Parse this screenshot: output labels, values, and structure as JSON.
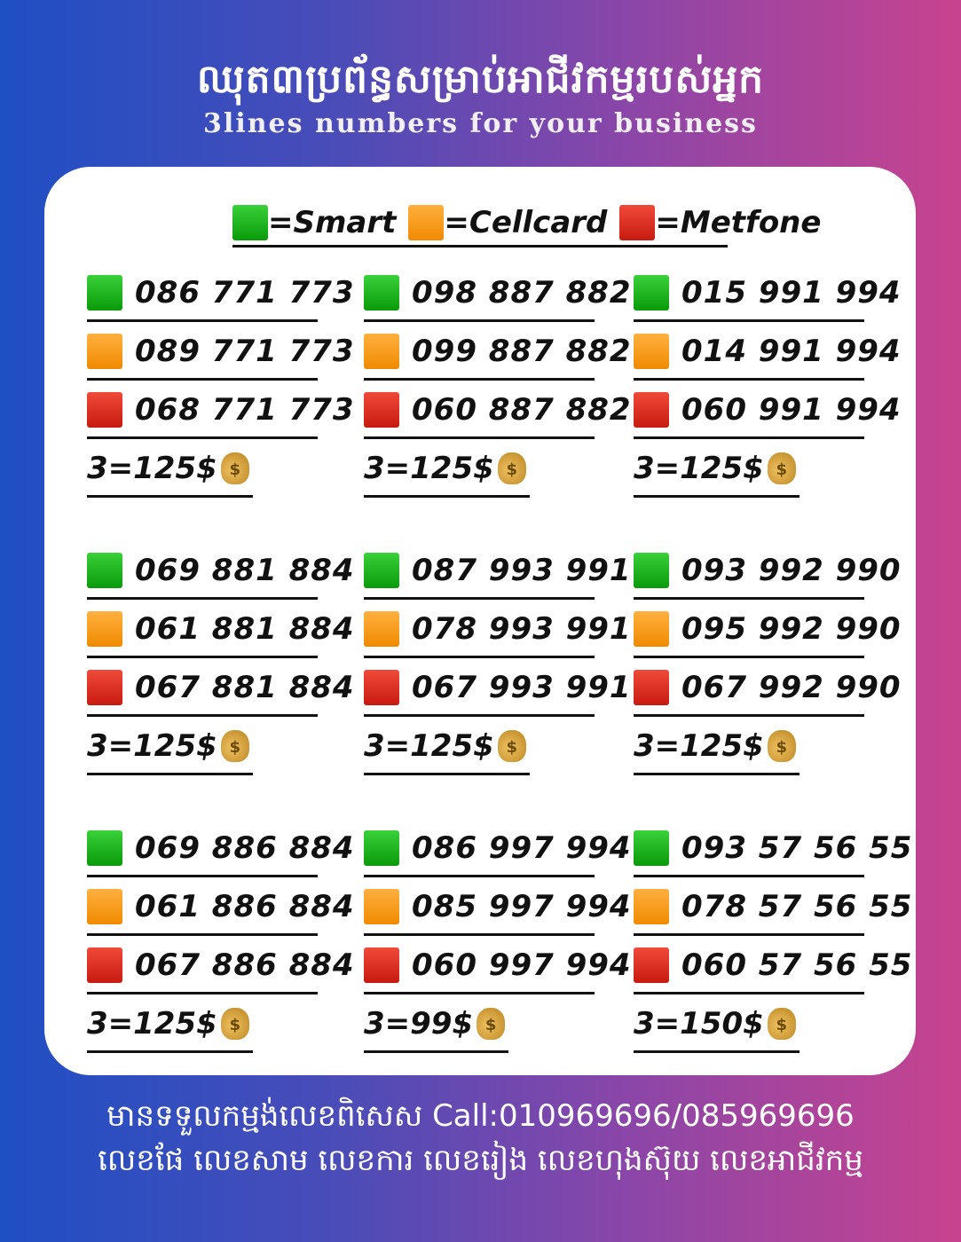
{
  "header": {
    "title": "ឈុត៣ប្រព័ន្ធសម្រាប់អាជីវកម្មរបស់អ្នក",
    "subtitle": "3lines numbers for your business"
  },
  "legend": [
    {
      "label": "=Smart",
      "color": "#1fb41f"
    },
    {
      "label": "=Cellcard",
      "color": "#f89a1c"
    },
    {
      "label": "=Metfone",
      "color": "#dc2a1e"
    }
  ],
  "sets": [
    {
      "numbers": [
        "086 771 773",
        "089 771 773",
        "068 771 773"
      ],
      "price": "3=125$"
    },
    {
      "numbers": [
        "098 887 882",
        "099 887 882",
        "060 887 882"
      ],
      "price": "3=125$"
    },
    {
      "numbers": [
        "015 991 994",
        "014 991 994",
        "060 991 994"
      ],
      "price": "3=125$"
    },
    {
      "numbers": [
        "069 881 884",
        "061 881 884",
        "067 881 884"
      ],
      "price": "3=125$"
    },
    {
      "numbers": [
        "087 993 991",
        "078 993 991",
        "067 993 991"
      ],
      "price": "3=125$"
    },
    {
      "numbers": [
        "093 992 990",
        "095 992 990",
        "067 992 990"
      ],
      "price": "3=125$"
    },
    {
      "numbers": [
        "069 886 884",
        "061 886 884",
        "067 886 884"
      ],
      "price": "3=125$"
    },
    {
      "numbers": [
        "086 997 994",
        "085 997 994",
        "060 997 994"
      ],
      "price": "3=99$"
    },
    {
      "numbers": [
        "093 57 56 55",
        "078 57 56 55",
        "060 57 56 55"
      ],
      "price": "3=150$"
    }
  ],
  "footer": {
    "line1": "មានទទួលកម្មង់លេខពិសេស Call:010969696/085969696",
    "line2": "លេខផែ លេខសាម លេខការ លេខរៀង លេខហុងស៊ុយ លេខអាជីវកម្ម"
  }
}
